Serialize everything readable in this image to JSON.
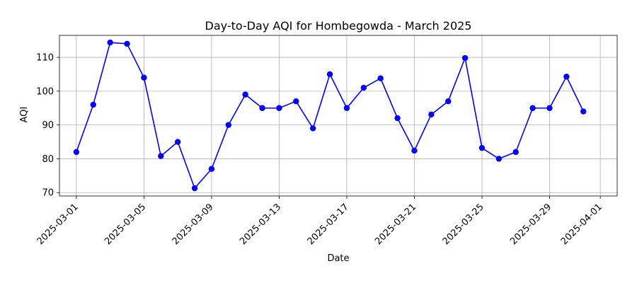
{
  "chart_data": {
    "type": "line",
    "title": "Day-to-Day AQI for Hombegowda - March 2025",
    "xlabel": "Date",
    "ylabel": "AQI",
    "grid": true,
    "xlim": [
      "2025-02-28",
      "2025-04-02"
    ],
    "ylim": [
      69,
      116.5
    ],
    "x_ticks": [
      "2025-03-01",
      "2025-03-05",
      "2025-03-09",
      "2025-03-13",
      "2025-03-17",
      "2025-03-21",
      "2025-03-25",
      "2025-03-29",
      "2025-04-01"
    ],
    "y_ticks": [
      70,
      80,
      90,
      100,
      110
    ],
    "series": [
      {
        "color": "#0000ff",
        "marker": "circle",
        "x": [
          "2025-03-01",
          "2025-03-02",
          "2025-03-03",
          "2025-03-04",
          "2025-03-05",
          "2025-03-06",
          "2025-03-07",
          "2025-03-08",
          "2025-03-09",
          "2025-03-10",
          "2025-03-11",
          "2025-03-12",
          "2025-03-13",
          "2025-03-14",
          "2025-03-15",
          "2025-03-16",
          "2025-03-17",
          "2025-03-18",
          "2025-03-19",
          "2025-03-20",
          "2025-03-21",
          "2025-03-22",
          "2025-03-23",
          "2025-03-24",
          "2025-03-25",
          "2025-03-26",
          "2025-03-27",
          "2025-03-28",
          "2025-03-29",
          "2025-03-30",
          "2025-03-31"
        ],
        "values": [
          82,
          96,
          114.4,
          114,
          104,
          80.8,
          85,
          71.3,
          77,
          90,
          99,
          95,
          95,
          97,
          89,
          105,
          95,
          101,
          103.8,
          92,
          82.4,
          93.1,
          97,
          109.8,
          83.2,
          80,
          82,
          95,
          95,
          104.3,
          94
        ]
      }
    ]
  }
}
